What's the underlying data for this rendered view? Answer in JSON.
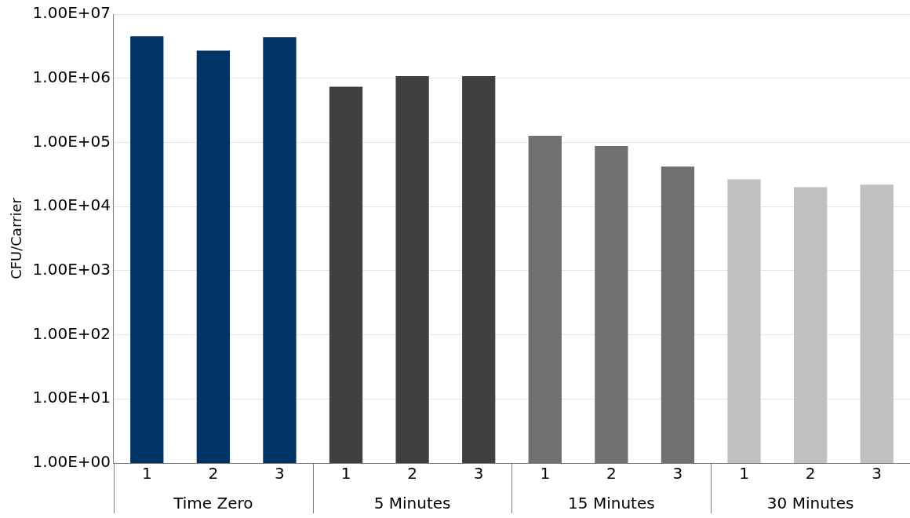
{
  "chart_data": {
    "type": "bar",
    "ylabel": "CFU/Carrier",
    "categories": [
      "1",
      "2",
      "3",
      "1",
      "2",
      "3",
      "1",
      "2",
      "3",
      "1",
      "2",
      "3"
    ],
    "values": [
      4500000,
      2700000,
      4400000,
      740000,
      1080000,
      1080000,
      127000,
      88000,
      42000,
      26500,
      20000,
      22000
    ],
    "colors": [
      "#003366",
      "#003366",
      "#003366",
      "#404040",
      "#404040",
      "#404040",
      "#707070",
      "#707070",
      "#707070",
      "#c0c0c0",
      "#c0c0c0",
      "#c0c0c0"
    ],
    "annotations": [
      "Time Zero",
      "5 Minutes",
      "15 Minutes",
      "30 Minutes"
    ],
    "log": true,
    "ylim": [
      1,
      10000000
    ],
    "yticks": [
      {
        "value": 1,
        "label": "1.00E+00"
      },
      {
        "value": 10,
        "label": "1.00E+01"
      },
      {
        "value": 100,
        "label": "1.00E+02"
      },
      {
        "value": 1000,
        "label": "1.00E+03"
      },
      {
        "value": 10000,
        "label": "1.00E+04"
      },
      {
        "value": 100000,
        "label": "1.00E+05"
      },
      {
        "value": 1000000,
        "label": "1.00E+06"
      },
      {
        "value": 10000000,
        "label": "1.00E+07"
      }
    ],
    "grid": "y",
    "legend": false
  }
}
